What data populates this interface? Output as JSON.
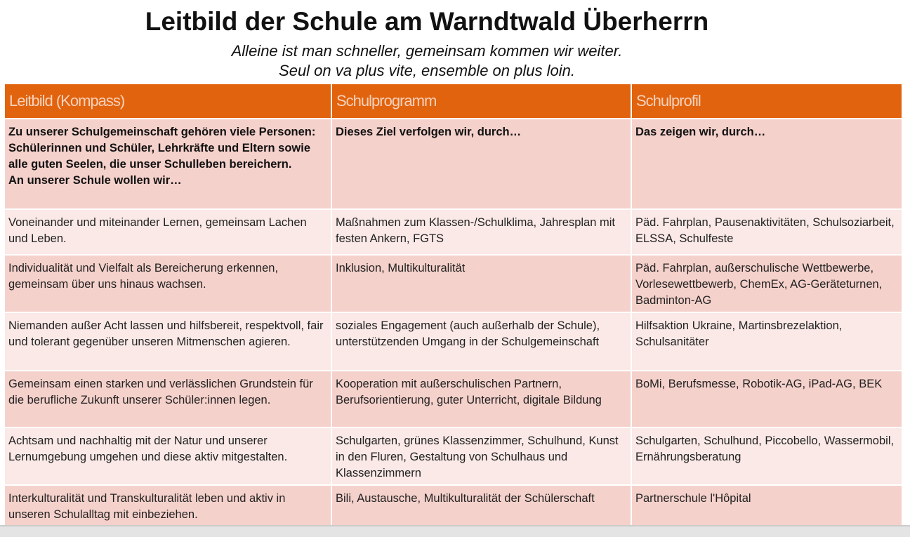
{
  "title": "Leitbild der Schule am Warndtwald Überherrn",
  "subtitle_de": "Alleine ist man schneller, gemeinsam kommen wir weiter.",
  "subtitle_fr": "Seul on va plus vite, ensemble on plus loin.",
  "colors": {
    "header": "#e2630e",
    "row_dark": "#f5d1cb",
    "row_light": "#fae9e6"
  },
  "table": {
    "headers": [
      "Leitbild (Kompass)",
      "Schulprogramm",
      "Schulprofil"
    ],
    "intro": [
      "Zu unserer Schulgemeinschaft gehören viele Personen: Schülerinnen und Schüler, Lehrkräfte und Eltern sowie alle guten Seelen, die unser Schulleben bereichern.\nAn unserer Schule wollen wir…",
      "Dieses Ziel verfolgen wir, durch…",
      "Das zeigen wir, durch…"
    ],
    "rows": [
      [
        "Voneinander und miteinander Lernen, gemeinsam Lachen und Leben.",
        "Maßnahmen zum Klassen-/Schulklima, Jahresplan mit festen Ankern, FGTS",
        "Päd. Fahrplan, Pausenaktivitäten, Schulsoziarbeit, ELSSA, Schulfeste"
      ],
      [
        "Individualität und Vielfalt als Bereicherung erkennen, gemeinsam über uns hinaus wachsen.",
        "Inklusion, Multikulturalität",
        "Päd. Fahrplan, außerschulische Wettbewerbe, Vorlesewettbewerb, ChemEx, AG-Geräteturnen, Badminton-AG"
      ],
      [
        "Niemanden außer Acht lassen und hilfsbereit, respektvoll, fair und tolerant gegenüber unseren Mitmenschen agieren.",
        "soziales Engagement (auch außerhalb der Schule), unterstützenden Umgang in der Schulgemeinschaft",
        "Hilfsaktion Ukraine, Martinsbrezelaktion, Schulsanitäter"
      ],
      [
        "Gemeinsam einen starken und verlässlichen Grundstein für die berufliche Zukunft unserer Schüler:innen legen.",
        "Kooperation mit außerschulischen Partnern, Berufsorientierung, guter Unterricht, digitale Bildung",
        "BoMi, Berufsmesse, Robotik-AG, iPad-AG, BEK"
      ],
      [
        "Achtsam und nachhaltig mit der Natur und unserer Lernumgebung umgehen und diese aktiv mitgestalten.",
        "Schulgarten, grünes Klassenzimmer, Schulhund, Kunst in den Fluren, Gestaltung von Schulhaus und Klassenzimmern",
        "Schulgarten, Schulhund, Piccobello, Wassermobil, Ernährungsberatung"
      ],
      [
        "Interkulturalität und Transkulturalität leben und aktiv in unseren Schulalltag mit einbeziehen.",
        "Bili, Austausche, Multikulturalität der Schülerschaft",
        "Partnerschule l'Hôpital"
      ]
    ]
  }
}
